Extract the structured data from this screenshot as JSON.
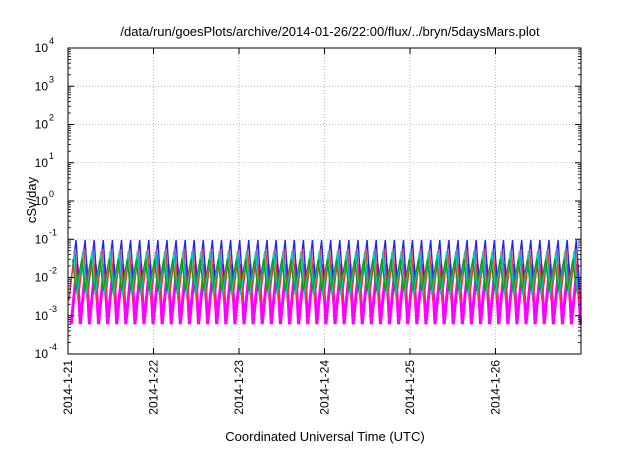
{
  "chart_data": {
    "type": "line",
    "title": "/data/run/goesPlots/archive/2014-01-26/22:00/flux/../bryn/5daysMars.plot",
    "xlabel": "Coordinated Universal Time (UTC)",
    "ylabel": "cSv/day",
    "yscale": "log",
    "ylim": [
      0.0001,
      10000
    ],
    "xlim": [
      "2014-1-21",
      "2014-1-27"
    ],
    "grid": true,
    "x_tick_labels": [
      "2014-1-21",
      "2014-1-22",
      "2014-1-23",
      "2014-1-24",
      "2014-1-25",
      "2014-1-26"
    ],
    "y_ticks": [
      {
        "base": "10",
        "exp": "-4"
      },
      {
        "base": "10",
        "exp": "-3"
      },
      {
        "base": "10",
        "exp": "-2"
      },
      {
        "base": "10",
        "exp": "-1"
      },
      {
        "base": "10",
        "exp": "0"
      },
      {
        "base": "10",
        "exp": "1"
      },
      {
        "base": "10",
        "exp": "2"
      },
      {
        "base": "10",
        "exp": "3"
      },
      {
        "base": "10",
        "exp": "4"
      }
    ],
    "oscillation": {
      "cycles_per_day": 9.4,
      "series": [
        {
          "color": "#ff00ff",
          "peak": 0.022,
          "trough": 0.0006
        },
        {
          "color": "#2222ff",
          "peak": 0.095,
          "trough": 0.005
        },
        {
          "color": "#ff3030",
          "peak": 0.055,
          "trough": 0.0025
        },
        {
          "color": "#00cccc",
          "peak": 0.05,
          "trough": 0.0035
        },
        {
          "color": "#00aa00",
          "peak": 0.03,
          "trough": 0.0045
        }
      ]
    }
  }
}
